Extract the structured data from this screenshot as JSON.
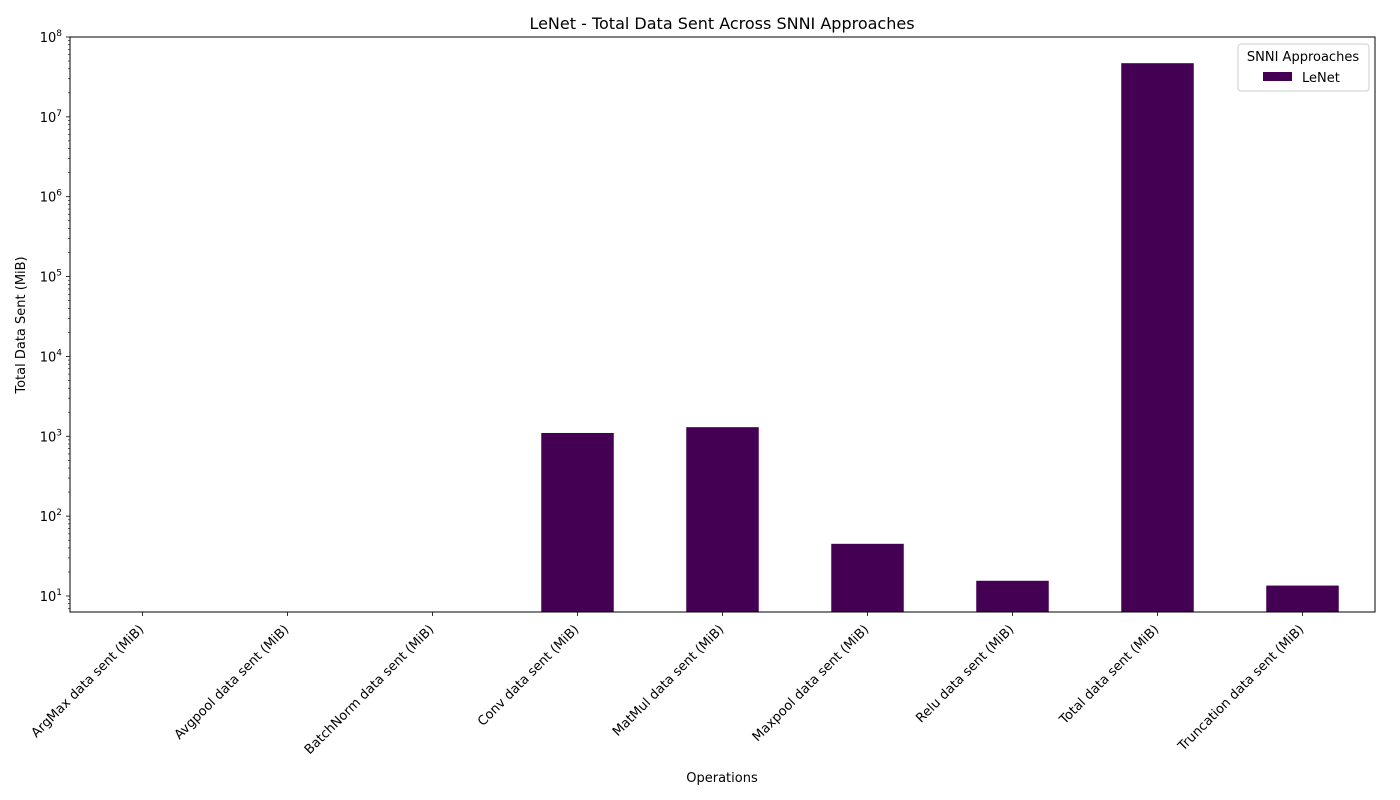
{
  "chart_data": {
    "type": "bar",
    "title": "LeNet - Total Data Sent Across SNNI Approaches",
    "xlabel": "Operations",
    "ylabel": "Total Data Sent (MiB)",
    "yscale": "log",
    "ylim": [
      6.3,
      100000000
    ],
    "yticks": [
      {
        "exp": 1,
        "value": 10
      },
      {
        "exp": 2,
        "value": 100
      },
      {
        "exp": 3,
        "value": 1000
      },
      {
        "exp": 4,
        "value": 10000
      },
      {
        "exp": 5,
        "value": 100000
      },
      {
        "exp": 6,
        "value": 1000000
      },
      {
        "exp": 7,
        "value": 10000000
      },
      {
        "exp": 8,
        "value": 100000000
      }
    ],
    "categories": [
      "ArgMax data sent (MiB)",
      "Avgpool data sent (MiB)",
      "BatchNorm data sent (MiB)",
      "Conv data sent (MiB)",
      "MatMul data sent (MiB)",
      "Maxpool data sent (MiB)",
      "Relu data sent (MiB)",
      "Total data sent (MiB)",
      "Truncation data sent (MiB)"
    ],
    "series": [
      {
        "name": "LeNet",
        "color": "#440154",
        "values": [
          0,
          0,
          0,
          1100,
          1300,
          45,
          15.5,
          47000000,
          13.5
        ]
      }
    ],
    "legend": {
      "title": "SNNI Approaches",
      "placement": "top-right"
    },
    "grid": false
  }
}
